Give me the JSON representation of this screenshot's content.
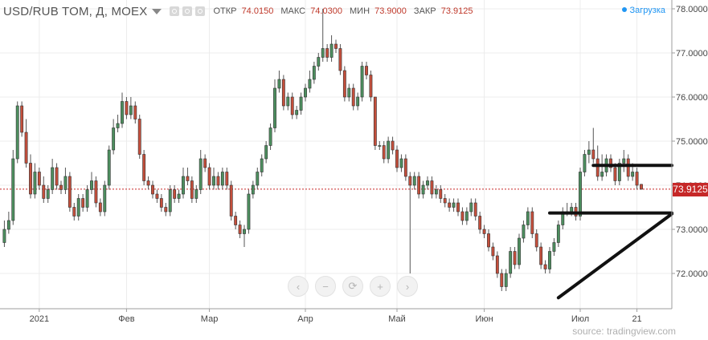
{
  "header": {
    "title": "USD/RUB TOM, Д, MOEX",
    "open_label": "ОТКР",
    "open": "74.0150",
    "high_label": "МАКС",
    "high": "74.0300",
    "low_label": "МИН",
    "low": "73.9000",
    "close_label": "ЗАКР",
    "close": "73.9125",
    "loading": "Загрузка"
  },
  "last_price": "73.9125",
  "source": "source: tradingview.com",
  "colors": {
    "up": "#4d8f5f",
    "down": "#c44f3c",
    "price_line": "#c62828",
    "drawing": "#111111"
  },
  "nav_icons": [
    "chevron-left-icon",
    "zoom-out-icon",
    "reset-icon",
    "zoom-in-icon",
    "chevron-right-icon"
  ],
  "chart_data": {
    "type": "candlestick",
    "y_ticks": [
      "78.0000",
      "77.0000",
      "76.0000",
      "75.0000",
      "74.0000",
      "73.0000",
      "72.0000"
    ],
    "y_tick_values": [
      78,
      77,
      76,
      75,
      74,
      73,
      72
    ],
    "ylim": [
      71.2,
      78.2
    ],
    "x_ticks": [
      {
        "label": "2021",
        "index": 8
      },
      {
        "label": "Фев",
        "index": 28
      },
      {
        "label": "Мар",
        "index": 47
      },
      {
        "label": "Апр",
        "index": 69
      },
      {
        "label": "Май",
        "index": 90
      },
      {
        "label": "Июн",
        "index": 110
      },
      {
        "label": "Июл",
        "index": 132
      },
      {
        "label": "21",
        "index": 145
      }
    ],
    "x_range": [
      -1,
      153
    ],
    "closes": [
      73.0,
      73.2,
      74.6,
      75.8,
      75.2,
      74.5,
      73.8,
      74.3,
      74.0,
      73.7,
      73.9,
      74.4,
      74.0,
      73.9,
      74.2,
      73.5,
      73.3,
      73.7,
      73.5,
      73.9,
      74.1,
      73.6,
      73.4,
      74.0,
      74.8,
      75.3,
      75.4,
      75.9,
      75.6,
      75.8,
      75.5,
      74.7,
      74.1,
      74.0,
      73.8,
      73.7,
      73.5,
      73.4,
      73.9,
      73.7,
      73.8,
      74.2,
      74.1,
      73.7,
      73.9,
      74.6,
      74.4,
      74.0,
      74.2,
      74.0,
      74.3,
      74.0,
      73.3,
      73.1,
      72.9,
      73.0,
      73.8,
      74.0,
      74.3,
      74.6,
      74.9,
      75.3,
      76.2,
      76.4,
      75.8,
      76.0,
      75.6,
      75.7,
      76.0,
      76.2,
      76.4,
      76.7,
      76.9,
      77.1,
      76.9,
      77.2,
      77.1,
      76.6,
      76.0,
      76.2,
      75.8,
      76.0,
      76.7,
      76.5,
      76.0,
      74.9,
      74.9,
      74.6,
      75.0,
      74.8,
      74.4,
      74.6,
      74.2,
      74.0,
      74.2,
      73.8,
      74.0,
      74.1,
      73.8,
      73.9,
      73.7,
      73.6,
      73.5,
      73.6,
      73.4,
      73.2,
      73.4,
      73.6,
      73.3,
      73.0,
      72.9,
      72.6,
      72.4,
      72.0,
      71.7,
      72.0,
      72.5,
      72.2,
      72.8,
      73.1,
      73.4,
      72.9,
      72.6,
      72.2,
      72.1,
      72.5,
      72.7,
      73.1,
      73.4,
      73.4,
      73.5,
      73.3,
      74.3,
      74.7,
      74.8,
      74.6,
      74.2,
      74.3,
      74.6,
      74.4,
      74.1,
      74.5,
      74.6,
      74.2,
      74.3,
      74.0,
      73.91
    ],
    "opens": [
      72.7,
      73.0,
      73.2,
      74.6,
      75.8,
      75.2,
      74.5,
      73.8,
      74.3,
      74.0,
      73.7,
      73.9,
      74.4,
      74.0,
      73.9,
      74.2,
      73.5,
      73.3,
      73.7,
      73.5,
      73.9,
      74.1,
      73.6,
      73.4,
      74.0,
      74.8,
      75.3,
      75.4,
      75.9,
      75.6,
      75.8,
      75.5,
      74.7,
      74.1,
      74.0,
      73.8,
      73.7,
      73.5,
      73.4,
      73.9,
      73.7,
      73.8,
      74.2,
      74.1,
      73.7,
      73.9,
      74.6,
      74.4,
      74.0,
      74.2,
      74.0,
      74.3,
      74.0,
      73.3,
      73.1,
      72.9,
      73.0,
      73.8,
      74.0,
      74.3,
      74.6,
      74.9,
      75.3,
      76.2,
      76.4,
      75.8,
      76.0,
      75.6,
      75.7,
      76.0,
      76.2,
      76.4,
      76.7,
      76.9,
      77.1,
      76.9,
      77.2,
      77.1,
      76.6,
      76.0,
      76.2,
      75.8,
      76.0,
      76.7,
      76.5,
      76.0,
      74.9,
      74.9,
      74.6,
      75.0,
      74.8,
      74.4,
      74.6,
      74.2,
      74.0,
      74.2,
      73.8,
      74.0,
      74.1,
      73.8,
      73.9,
      73.7,
      73.6,
      73.5,
      73.6,
      73.4,
      73.2,
      73.4,
      73.6,
      73.3,
      73.0,
      72.9,
      72.6,
      72.4,
      72.0,
      71.7,
      72.0,
      72.5,
      72.2,
      72.8,
      73.1,
      73.4,
      72.9,
      72.6,
      72.2,
      72.1,
      72.5,
      72.7,
      73.1,
      73.4,
      73.4,
      73.5,
      73.3,
      74.3,
      74.7,
      74.8,
      74.6,
      74.2,
      74.3,
      74.6,
      74.4,
      74.1,
      74.5,
      74.6,
      74.2,
      74.3,
      74.02
    ],
    "highs": [
      73.2,
      73.4,
      74.8,
      75.9,
      75.9,
      75.5,
      74.7,
      74.5,
      74.4,
      74.2,
      74.0,
      74.6,
      74.5,
      74.1,
      74.4,
      74.3,
      73.6,
      73.8,
      73.8,
      74.0,
      74.3,
      74.2,
      73.7,
      74.1,
      74.9,
      75.5,
      75.6,
      76.1,
      76.0,
      76.0,
      75.9,
      75.6,
      74.8,
      74.2,
      74.1,
      73.9,
      73.8,
      73.6,
      74.0,
      74.0,
      73.9,
      74.4,
      74.4,
      74.2,
      74.0,
      74.8,
      74.7,
      74.5,
      74.4,
      74.3,
      74.4,
      74.4,
      74.1,
      73.4,
      73.2,
      73.1,
      73.9,
      74.1,
      74.4,
      74.7,
      75.0,
      75.4,
      76.4,
      76.6,
      76.5,
      76.1,
      76.1,
      75.8,
      76.1,
      76.3,
      76.6,
      76.8,
      77.0,
      78.0,
      77.2,
      77.4,
      77.3,
      77.2,
      76.7,
      76.3,
      76.3,
      76.1,
      76.8,
      76.8,
      76.6,
      76.0,
      75.0,
      75.0,
      75.1,
      75.1,
      74.9,
      74.7,
      74.7,
      74.3,
      74.3,
      74.3,
      74.1,
      74.2,
      74.2,
      74.0,
      74.0,
      73.8,
      73.7,
      73.7,
      73.7,
      73.5,
      73.5,
      73.7,
      73.7,
      73.4,
      73.1,
      73.0,
      72.7,
      72.5,
      72.1,
      72.1,
      72.6,
      72.6,
      72.9,
      73.2,
      73.5,
      73.5,
      73.0,
      72.7,
      72.3,
      72.6,
      72.8,
      73.2,
      73.5,
      73.6,
      73.6,
      73.6,
      74.4,
      74.8,
      75.0,
      75.3,
      74.9,
      74.7,
      74.7,
      74.7,
      74.5,
      74.6,
      74.8,
      74.7,
      74.5,
      74.4,
      74.03
    ],
    "lows": [
      72.6,
      72.9,
      73.1,
      74.5,
      75.1,
      74.4,
      73.7,
      73.7,
      73.9,
      73.6,
      73.6,
      73.8,
      73.9,
      73.8,
      73.8,
      73.4,
      73.2,
      73.2,
      73.4,
      73.4,
      73.8,
      73.5,
      73.3,
      73.3,
      73.9,
      74.7,
      75.2,
      75.3,
      75.5,
      75.5,
      75.4,
      74.6,
      74.0,
      73.9,
      73.7,
      73.6,
      73.4,
      73.3,
      73.3,
      73.6,
      73.6,
      73.7,
      74.0,
      73.6,
      73.6,
      73.8,
      74.3,
      73.9,
      73.9,
      73.9,
      73.9,
      73.9,
      73.2,
      73.0,
      72.8,
      72.6,
      72.9,
      73.7,
      73.9,
      74.2,
      74.5,
      74.8,
      75.2,
      76.1,
      75.7,
      75.7,
      75.5,
      75.5,
      75.6,
      75.9,
      76.1,
      76.3,
      76.6,
      76.8,
      76.8,
      76.8,
      77.0,
      76.5,
      75.9,
      75.9,
      75.7,
      75.7,
      75.9,
      76.4,
      75.9,
      74.8,
      74.8,
      74.5,
      74.5,
      74.7,
      74.3,
      74.3,
      74.1,
      72.0,
      73.9,
      73.7,
      73.7,
      73.9,
      73.7,
      73.7,
      73.6,
      73.5,
      73.4,
      73.4,
      73.3,
      73.1,
      73.1,
      73.3,
      73.2,
      72.9,
      72.8,
      72.5,
      72.3,
      71.9,
      71.6,
      71.6,
      71.9,
      72.1,
      72.1,
      72.7,
      73.0,
      72.8,
      72.5,
      72.1,
      72.0,
      72.0,
      72.4,
      72.6,
      73.0,
      73.3,
      73.3,
      73.2,
      73.2,
      74.2,
      74.5,
      74.5,
      74.1,
      74.1,
      74.2,
      74.3,
      74.0,
      74.0,
      74.3,
      74.1,
      74.1,
      73.9,
      73.9
    ],
    "price_line": 73.9125,
    "drawings": [
      {
        "type": "trendline",
        "points": [
          [
            127,
            71.45
          ],
          [
            153,
            73.35
          ]
        ]
      },
      {
        "type": "horizontal",
        "points": [
          [
            125,
            73.37
          ],
          [
            153,
            73.37
          ]
        ]
      },
      {
        "type": "horizontal",
        "points": [
          [
            135,
            74.45
          ],
          [
            153,
            74.45
          ]
        ]
      }
    ]
  }
}
